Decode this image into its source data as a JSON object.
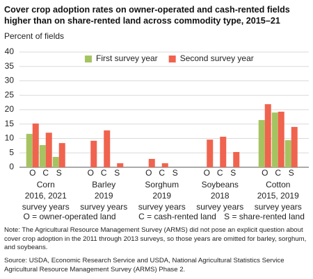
{
  "chart_data": {
    "type": "bar",
    "title": "Cover crop adoption rates on owner-operated and cash-rented fields higher than on share-rented land across commodity type, 2015–21",
    "y_label": "Percent of fields",
    "categories": [
      "O",
      "C",
      "S",
      "O",
      "C",
      "S",
      "O",
      "C",
      "S",
      "O",
      "C",
      "S",
      "O",
      "C",
      "S"
    ],
    "groups": [
      [
        "Corn",
        "2016, 2021",
        "survey years"
      ],
      [
        "Barley",
        "2019",
        "survey years"
      ],
      [
        "Sorghum",
        "2019",
        "survey years"
      ],
      [
        "Soybeans",
        "2018",
        "survey years"
      ],
      [
        "Cotton",
        "2015, 2019",
        "survey years"
      ]
    ],
    "series": [
      {
        "name": "First survey year",
        "color": "#a5c461",
        "values": [
          11.6,
          7.7,
          3.6,
          null,
          null,
          null,
          null,
          null,
          null,
          null,
          null,
          null,
          16.4,
          19,
          9.4
        ]
      },
      {
        "name": "Second survey year",
        "color": "#f0634e",
        "values": [
          15.2,
          12,
          8.4,
          9.2,
          12.8,
          1.4,
          2.9,
          1.4,
          null,
          9.6,
          10.6,
          5.3,
          21.9,
          19.3,
          14
        ]
      }
    ],
    "ylim": [
      0,
      40
    ],
    "yticks": [
      0,
      5,
      10,
      15,
      20,
      25,
      30,
      35,
      40
    ],
    "grid": true,
    "legend": "top-right",
    "key": [
      "O = owner-operated land",
      "C = cash-rented land",
      "S = share-rented land"
    ],
    "note": "Note: The Agricultural Resource Management Survey (ARMS) did not pose an explicit question about cover crop adoption in the 2011 through 2013 surveys, so those years are omitted for barley, sorghum, and soybeans.",
    "source": "Source: USDA, Economic Research Service and USDA, National Agricultural Statistics Service Agricultural Resource Management Survey (ARMS) Phase 2."
  }
}
